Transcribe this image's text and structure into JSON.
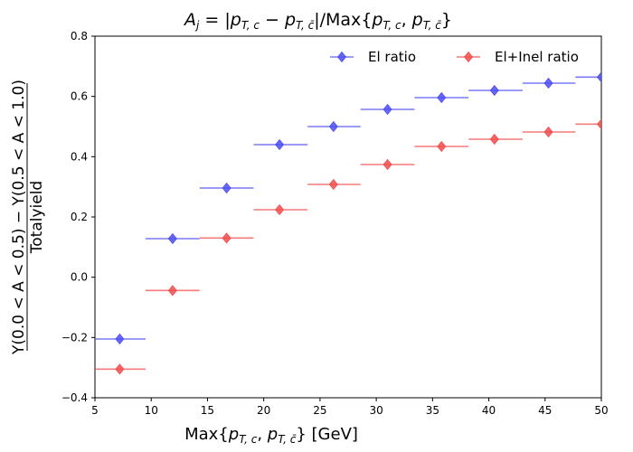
{
  "chart_data": {
    "type": "scatter",
    "title": "A_j = |p_T,c − p_T,c̄| / Max{p_T,c, p_T,c̄}",
    "xlabel": "Max{p_T,c, p_T,c̄} [GeV]",
    "ylabel_top": "Y(0.0 < A < 0.5) − Y(0.5 < A < 1.0)",
    "ylabel_bottom": "Totalyield",
    "xlim": [
      5,
      50
    ],
    "ylim": [
      -0.4,
      0.8
    ],
    "x_ticks": [
      5,
      10,
      15,
      20,
      25,
      30,
      35,
      40,
      45,
      50
    ],
    "y_ticks": [
      -0.4,
      -0.2,
      0.0,
      0.2,
      0.4,
      0.6,
      0.8
    ],
    "x_tick_labels": [
      "5",
      "10",
      "15",
      "20",
      "25",
      "30",
      "35",
      "40",
      "45",
      "50"
    ],
    "y_tick_labels": [
      "−0.4",
      "−0.2",
      "0.0",
      "0.2",
      "0.4",
      "0.6",
      "0.8"
    ],
    "grid": false,
    "legend_position": "top-right",
    "x": [
      7.2,
      11.9,
      16.7,
      21.4,
      26.2,
      31.0,
      35.8,
      40.5,
      45.3,
      50.0
    ],
    "x_bins": [
      [
        5.0,
        9.5
      ],
      [
        9.5,
        14.3
      ],
      [
        14.3,
        19.1
      ],
      [
        19.1,
        23.9
      ],
      [
        23.9,
        28.6
      ],
      [
        28.6,
        33.4
      ],
      [
        33.4,
        38.2
      ],
      [
        38.2,
        43.0
      ],
      [
        43.0,
        47.7
      ],
      [
        47.7,
        52.4
      ]
    ],
    "series": [
      {
        "name": "El ratio",
        "color": "#4d4df2",
        "marker": "diamond",
        "values": [
          -0.205,
          0.128,
          0.296,
          0.44,
          0.5,
          0.557,
          0.596,
          0.62,
          0.644,
          0.664
        ]
      },
      {
        "name": "El+Inel ratio",
        "color": "#f24d4d",
        "marker": "diamond",
        "values": [
          -0.305,
          -0.044,
          0.13,
          0.224,
          0.308,
          0.374,
          0.434,
          0.458,
          0.482,
          0.508
        ]
      }
    ]
  }
}
